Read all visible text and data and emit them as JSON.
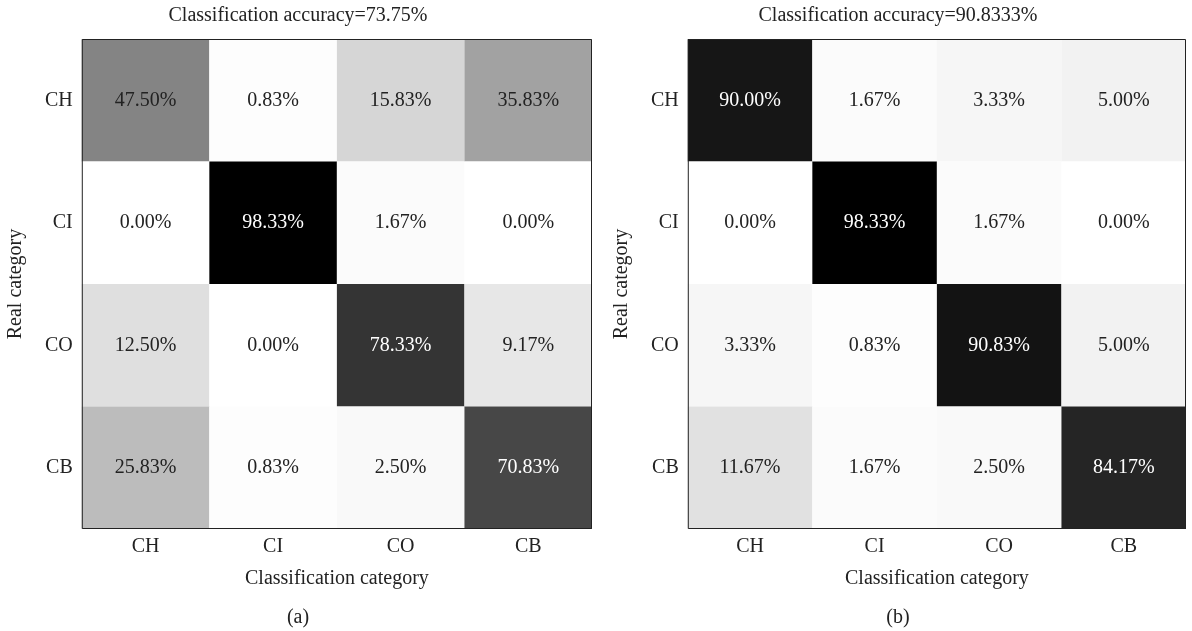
{
  "chart_data": [
    {
      "type": "heatmap",
      "title": "Classification accuracy=73.75%",
      "xlabel": "Classification category",
      "ylabel": "Real category",
      "categories": [
        "CH",
        "CI",
        "CO",
        "CB"
      ],
      "y_categories": [
        "CH",
        "CI",
        "CO",
        "CB"
      ],
      "cells": [
        [
          47.5,
          0.83,
          15.83,
          35.83
        ],
        [
          0.0,
          98.33,
          1.67,
          0.0
        ],
        [
          12.5,
          0.0,
          78.33,
          9.17
        ],
        [
          25.83,
          0.83,
          2.5,
          70.83
        ]
      ],
      "cell_labels": [
        [
          "47.50%",
          "0.83%",
          "15.83%",
          "35.83%"
        ],
        [
          "0.00%",
          "98.33%",
          "1.67%",
          "0.00%"
        ],
        [
          "12.50%",
          "0.00%",
          "78.33%",
          "9.17%"
        ],
        [
          "25.83%",
          "0.83%",
          "2.50%",
          "70.83%"
        ]
      ],
      "annotations": [
        "(a)"
      ]
    },
    {
      "type": "heatmap",
      "title": "Classification accuracy=90.8333%",
      "xlabel": "Classification category",
      "ylabel": "Real category",
      "categories": [
        "CH",
        "CI",
        "CO",
        "CB"
      ],
      "y_categories": [
        "CH",
        "CI",
        "CO",
        "CB"
      ],
      "cells": [
        [
          90.0,
          1.67,
          3.33,
          5.0
        ],
        [
          0.0,
          98.33,
          1.67,
          0.0
        ],
        [
          3.33,
          0.83,
          90.83,
          5.0
        ],
        [
          11.67,
          1.67,
          2.5,
          84.17
        ]
      ],
      "cell_labels": [
        [
          "90.00%",
          "1.67%",
          "3.33%",
          "5.00%"
        ],
        [
          "0.00%",
          "98.33%",
          "1.67%",
          "0.00%"
        ],
        [
          "3.33%",
          "0.83%",
          "90.83%",
          "5.00%"
        ],
        [
          "11.67%",
          "1.67%",
          "2.50%",
          "84.17%"
        ]
      ],
      "annotations": [
        "(b)"
      ]
    }
  ]
}
